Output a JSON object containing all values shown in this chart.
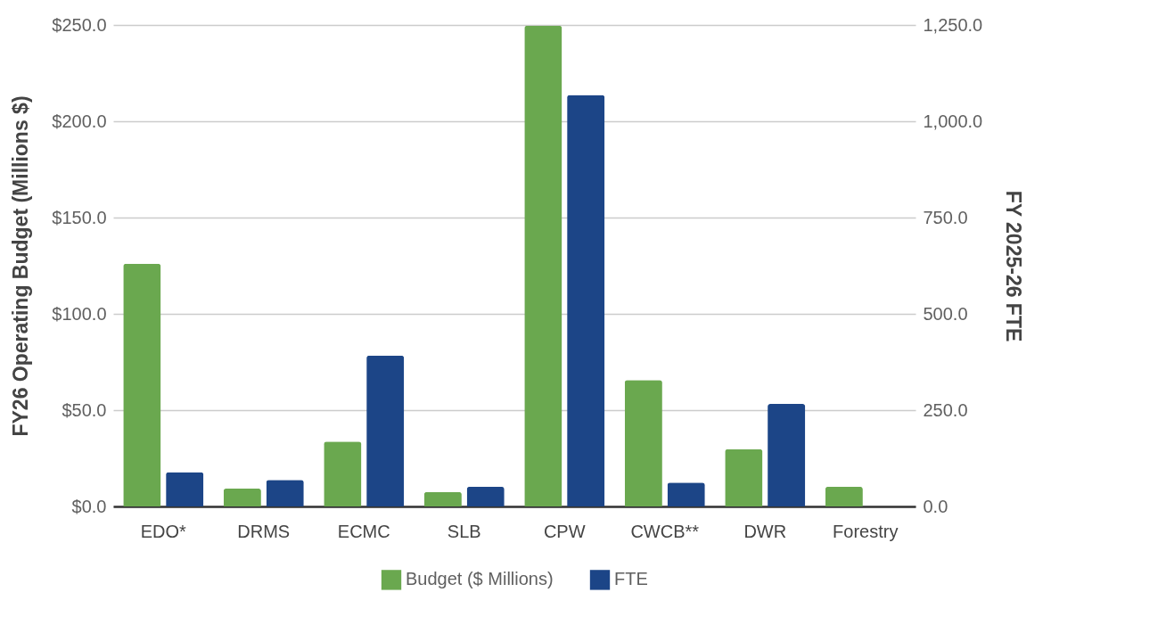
{
  "chart_data": {
    "type": "bar",
    "ylabel": "FY26 Operating Budget (Millions $)",
    "y2label": "FY 2025-26 FTE",
    "categories": [
      "EDO*",
      "DRMS",
      "ECMC",
      "SLB",
      "CPW",
      "CWCB**",
      "DWR",
      "Forestry"
    ],
    "series": [
      {
        "name": "Budget ($ Millions)",
        "color": "#6aa84f",
        "values": [
          126,
          9.3,
          33.7,
          7.5,
          249.6,
          65.6,
          29.7,
          10.2
        ]
      },
      {
        "name": "FTE",
        "color": "#1c4587",
        "axis": "y2",
        "values": [
          89,
          69,
          392,
          51,
          1068,
          62,
          266,
          null
        ]
      }
    ],
    "ylim": [
      0,
      250
    ],
    "yticks": [
      {
        "value": 0,
        "label": "$0.0"
      },
      {
        "value": 50,
        "label": "$50.0"
      },
      {
        "value": 100,
        "label": "$100.0"
      },
      {
        "value": 150,
        "label": "$150.0"
      },
      {
        "value": 200,
        "label": "$200.0"
      },
      {
        "value": 250,
        "label": "$250.0"
      }
    ],
    "y2lim": [
      0,
      1250
    ],
    "y2ticks": [
      {
        "value": 0,
        "label": "0.0"
      },
      {
        "value": 250,
        "label": "250.0"
      },
      {
        "value": 500,
        "label": "500.0"
      },
      {
        "value": 750,
        "label": "750.0"
      },
      {
        "value": 1000,
        "label": "1,000.0"
      },
      {
        "value": 1250,
        "label": "1,250.0"
      }
    ],
    "grid": "y",
    "legend": "bottom"
  }
}
